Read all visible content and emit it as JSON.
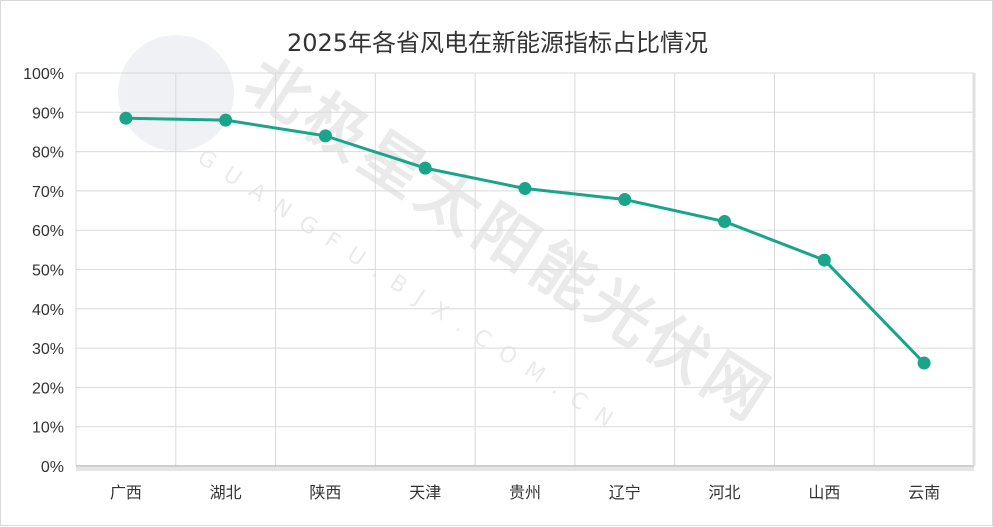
{
  "chart_data": {
    "type": "line",
    "title": "2025年各省风电在新能源指标占比情况",
    "categories": [
      "广西",
      "湖北",
      "陕西",
      "天津",
      "贵州",
      "辽宁",
      "河北",
      "山西",
      "云南"
    ],
    "series": [
      {
        "values": [
          88.5,
          88.0,
          84.0,
          75.8,
          70.6,
          67.8,
          62.2,
          52.4,
          26.2
        ]
      }
    ],
    "ylim": [
      0,
      100
    ],
    "yticks": [
      "0%",
      "10%",
      "20%",
      "30%",
      "40%",
      "50%",
      "60%",
      "70%",
      "80%",
      "90%",
      "100%"
    ],
    "grid": true,
    "colors": {
      "line": "#1aa58a",
      "grid": "#d9d9d9",
      "text": "#333333"
    }
  },
  "watermark": {
    "text": "北极星太阳能光伏网",
    "subtext": "GUANGFU.BJX.COM.CN"
  }
}
